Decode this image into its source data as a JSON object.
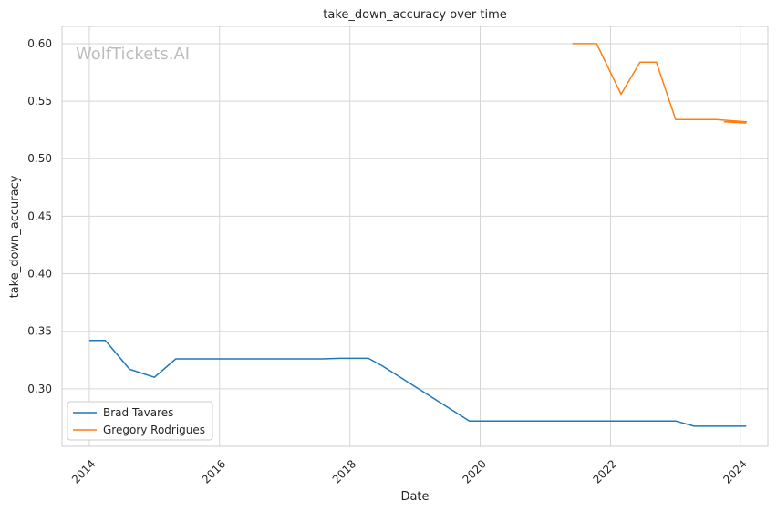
{
  "chart_data": {
    "type": "line",
    "title": "take_down_accuracy over time",
    "xlabel": "Date",
    "ylabel": "take_down_accuracy",
    "watermark": "WolfTickets.AI",
    "x_ticks": [
      "2014",
      "2016",
      "2018",
      "2020",
      "2022",
      "2024"
    ],
    "y_ticks": [
      "0.60",
      "0.55",
      "0.50",
      "0.45",
      "0.40",
      "0.35",
      "0.30"
    ],
    "xlim": [
      "2013-08-01",
      "2024-06-01"
    ],
    "ylim": [
      0.25,
      0.615
    ],
    "grid": true,
    "legend_position": "lower-left",
    "series": [
      {
        "name": "Brad Tavares",
        "color": "#1f77b4",
        "points": [
          [
            "2014-01-01",
            0.342
          ],
          [
            "2014-04-01",
            0.342
          ],
          [
            "2014-08-15",
            0.317
          ],
          [
            "2015-01-01",
            0.31
          ],
          [
            "2015-05-01",
            0.326
          ],
          [
            "2017-08-01",
            0.326
          ],
          [
            "2017-11-01",
            0.3265
          ],
          [
            "2018-04-15",
            0.3265
          ],
          [
            "2018-07-01",
            0.32
          ],
          [
            "2019-11-01",
            0.272
          ],
          [
            "2023-01-01",
            0.272
          ],
          [
            "2023-04-15",
            0.2675
          ],
          [
            "2024-02-01",
            0.2675
          ]
        ]
      },
      {
        "name": "Gregory Rodrigues",
        "color": "#ff7f0e",
        "points": [
          [
            "2021-06-01",
            0.6
          ],
          [
            "2021-10-15",
            0.6
          ],
          [
            "2022-03-01",
            0.556
          ],
          [
            "2022-06-15",
            0.584
          ],
          [
            "2022-09-15",
            0.584
          ],
          [
            "2023-01-01",
            0.534
          ],
          [
            "2023-08-15",
            0.534
          ],
          [
            "2024-02-01",
            0.532
          ],
          [
            "2023-10-01",
            0.532
          ],
          [
            "2024-02-01",
            0.531
          ]
        ]
      }
    ]
  }
}
